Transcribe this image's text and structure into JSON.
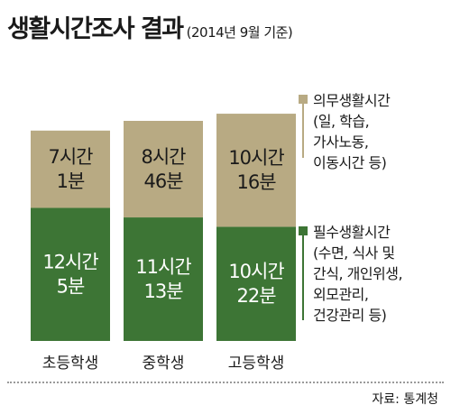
{
  "title": {
    "main": "생활시간조사 결과",
    "sub": "(2014년 9월 기준)"
  },
  "chart_data": {
    "type": "bar",
    "stacked": true,
    "categories": [
      "초등학생",
      "중학생",
      "고등학생"
    ],
    "series": [
      {
        "name": "필수생활시간",
        "color": "#3d7535",
        "values_minutes": [
          725,
          673,
          622
        ],
        "value_labels": [
          [
            "12시간",
            "5분"
          ],
          [
            "11시간",
            "13분"
          ],
          [
            "10시간",
            "22분"
          ]
        ]
      },
      {
        "name": "의무생활시간",
        "color": "#b8aa83",
        "values_minutes": [
          421,
          526,
          616
        ],
        "value_labels": [
          [
            "7시간",
            "1분"
          ],
          [
            "8시간",
            "46분"
          ],
          [
            "10시간",
            "16분"
          ]
        ]
      }
    ]
  },
  "legend": {
    "obligatory": {
      "title": "의무생활시간",
      "lines": [
        "(일, 학습,",
        "가사노동,",
        "이동시간 등)"
      ]
    },
    "necessary": {
      "title": "필수생활시간",
      "lines": [
        "(수면, 식사 및",
        "간식, 개인위생,",
        "외모관리,",
        "건강관리 등)"
      ]
    }
  },
  "source": "자료: 통계청"
}
